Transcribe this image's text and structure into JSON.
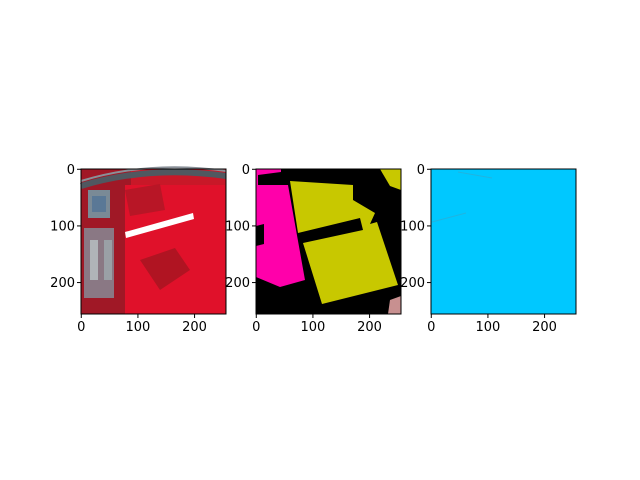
{
  "chart_data": [
    {
      "type": "image",
      "title": "",
      "content": "false-color satellite image (red vegetation, roads, buildings)",
      "x_ticks": [
        0,
        100,
        200
      ],
      "y_ticks": [
        0,
        100,
        200
      ],
      "xlim": [
        0,
        255
      ],
      "ylim": [
        255,
        0
      ],
      "colors": {
        "vegetation": "#e0112a",
        "road": "#e8e8e8",
        "buildings": "#8a9aa0"
      }
    },
    {
      "type": "image",
      "title": "",
      "content": "segmentation mask",
      "x_ticks": [
        0,
        100,
        200
      ],
      "y_ticks": [
        0,
        100,
        200
      ],
      "xlim": [
        0,
        255
      ],
      "ylim": [
        255,
        0
      ],
      "colors": {
        "background": "#000000",
        "class_a": "#ff00aa",
        "class_b": "#c8c800",
        "class_c": "#c89090"
      }
    },
    {
      "type": "image",
      "title": "",
      "content": "uniform cyan prediction map",
      "x_ticks": [
        0,
        100,
        200
      ],
      "y_ticks": [
        0,
        100,
        200
      ],
      "xlim": [
        0,
        255
      ],
      "ylim": [
        255,
        0
      ],
      "colors": {
        "fill": "#00c8ff"
      }
    }
  ]
}
